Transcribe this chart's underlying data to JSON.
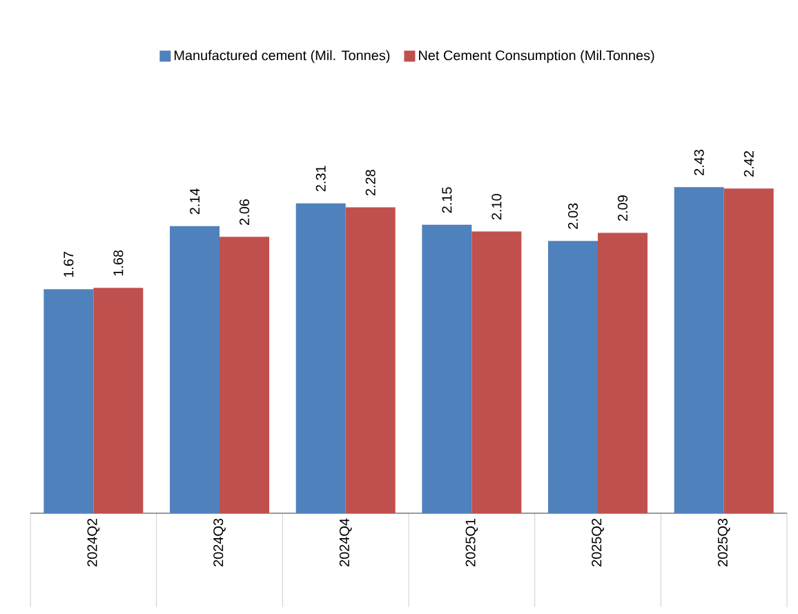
{
  "chart_data": {
    "type": "bar",
    "categories": [
      "2024Q2",
      "2024Q3",
      "2024Q4",
      "2025Q1",
      "2025Q2",
      "2025Q3"
    ],
    "series": [
      {
        "name": "Manufactured cement (Mil. Tonnes)",
        "color": "#4f81bd",
        "values": [
          1.67,
          2.14,
          2.31,
          2.15,
          2.03,
          2.43
        ],
        "value_labels": [
          "1.67",
          "2.14",
          "2.31",
          "2.15",
          "2.03",
          "2.43"
        ]
      },
      {
        "name": "Net Cement Consumption (Mil.Tonnes)",
        "color": "#c0504d",
        "values": [
          1.68,
          2.06,
          2.28,
          2.1,
          2.09,
          2.42
        ],
        "value_labels": [
          "1.68",
          "2.06",
          "2.28",
          "2.10",
          "2.09",
          "2.42"
        ]
      }
    ],
    "legend": "top"
  }
}
